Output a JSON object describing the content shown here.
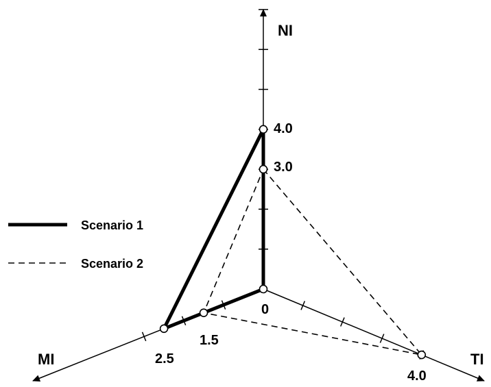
{
  "chart_data": {
    "type": "radar",
    "title": "",
    "center_label": "0",
    "axes": [
      {
        "name": "NI",
        "tick_interval": 1,
        "tick_count": 7
      },
      {
        "name": "TI",
        "tick_interval": 1,
        "tick_count": 4
      },
      {
        "name": "MI",
        "tick_interval": 1,
        "tick_count": 3
      }
    ],
    "series": [
      {
        "name": "Scenario 1",
        "style": "solid-thick",
        "color": "#000000",
        "values": {
          "NI": 4.0,
          "TI": 0,
          "MI": 2.5
        },
        "labels": {
          "NI": "4.0",
          "MI": "2.5"
        }
      },
      {
        "name": "Scenario 2",
        "style": "dashed",
        "color": "#000000",
        "values": {
          "NI": 3.0,
          "TI": 4.0,
          "MI": 1.5
        },
        "labels": {
          "NI": "3.0",
          "TI": "4.0",
          "MI": "1.5"
        }
      }
    ],
    "legend": {
      "position": "left"
    }
  }
}
